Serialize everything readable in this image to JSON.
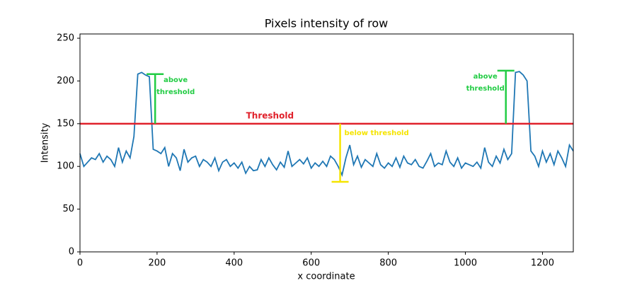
{
  "chart_data": {
    "type": "line",
    "title": "Pixels intensity of row",
    "x_label": "x coordinate",
    "y_label": "Intensity",
    "color": "#1f77b4",
    "xlim": [
      0,
      1280
    ],
    "ylim": [
      0,
      255
    ],
    "xticks": [
      0,
      200,
      400,
      600,
      800,
      1000,
      1200
    ],
    "yticks": [
      0,
      50,
      100,
      150,
      200,
      250
    ],
    "grid": false,
    "x": [
      0,
      10,
      20,
      30,
      40,
      50,
      60,
      70,
      80,
      90,
      100,
      110,
      120,
      130,
      140,
      150,
      160,
      170,
      180,
      190,
      200,
      210,
      220,
      230,
      240,
      250,
      260,
      270,
      280,
      290,
      300,
      310,
      320,
      330,
      340,
      350,
      360,
      370,
      380,
      390,
      400,
      410,
      420,
      430,
      440,
      450,
      460,
      470,
      480,
      490,
      500,
      510,
      520,
      530,
      540,
      550,
      560,
      570,
      580,
      590,
      600,
      610,
      620,
      630,
      640,
      650,
      660,
      670,
      680,
      690,
      700,
      710,
      720,
      730,
      740,
      750,
      760,
      770,
      780,
      790,
      800,
      810,
      820,
      830,
      840,
      850,
      860,
      870,
      880,
      890,
      900,
      910,
      920,
      930,
      940,
      950,
      960,
      970,
      980,
      990,
      1000,
      1010,
      1020,
      1030,
      1040,
      1050,
      1060,
      1070,
      1080,
      1090,
      1100,
      1110,
      1120,
      1130,
      1140,
      1150,
      1160,
      1170,
      1180,
      1190,
      1200,
      1210,
      1220,
      1230,
      1240,
      1250,
      1260,
      1270,
      1280
    ],
    "values": [
      115,
      100,
      105,
      110,
      108,
      115,
      105,
      112,
      108,
      100,
      122,
      105,
      118,
      110,
      135,
      208,
      210,
      207,
      205,
      120,
      118,
      115,
      122,
      100,
      115,
      110,
      95,
      120,
      105,
      110,
      112,
      100,
      108,
      105,
      100,
      110,
      95,
      105,
      108,
      100,
      104,
      98,
      105,
      92,
      100,
      95,
      96,
      108,
      100,
      110,
      102,
      96,
      105,
      99,
      118,
      100,
      104,
      108,
      103,
      110,
      98,
      104,
      100,
      106,
      100,
      112,
      108,
      100,
      90,
      110,
      125,
      102,
      112,
      99,
      108,
      104,
      100,
      115,
      102,
      98,
      104,
      100,
      110,
      99,
      112,
      104,
      102,
      108,
      100,
      98,
      106,
      115,
      100,
      104,
      102,
      118,
      105,
      100,
      110,
      98,
      104,
      102,
      100,
      105,
      98,
      122,
      105,
      100,
      112,
      104,
      120,
      108,
      115,
      210,
      211,
      207,
      200,
      118,
      112,
      100,
      118,
      105,
      115,
      102,
      118,
      110,
      100,
      125,
      118
    ],
    "threshold": {
      "value": 150,
      "label": "Threshold",
      "color": "#e0202a"
    },
    "annotations": [
      {
        "x": 195,
        "y_from": 150,
        "y_to": 208,
        "color": "#22cc44",
        "label_side": "right",
        "lines": [
          "above",
          "threshold"
        ]
      },
      {
        "x": 1105,
        "y_from": 150,
        "y_to": 212,
        "color": "#22cc44",
        "label_side": "left",
        "lines": [
          "above",
          "threshold"
        ]
      },
      {
        "x": 675,
        "y_from": 150,
        "y_to": 82,
        "color": "#f5e400",
        "label_side": "right",
        "lines": [
          "below threshold"
        ]
      }
    ]
  }
}
